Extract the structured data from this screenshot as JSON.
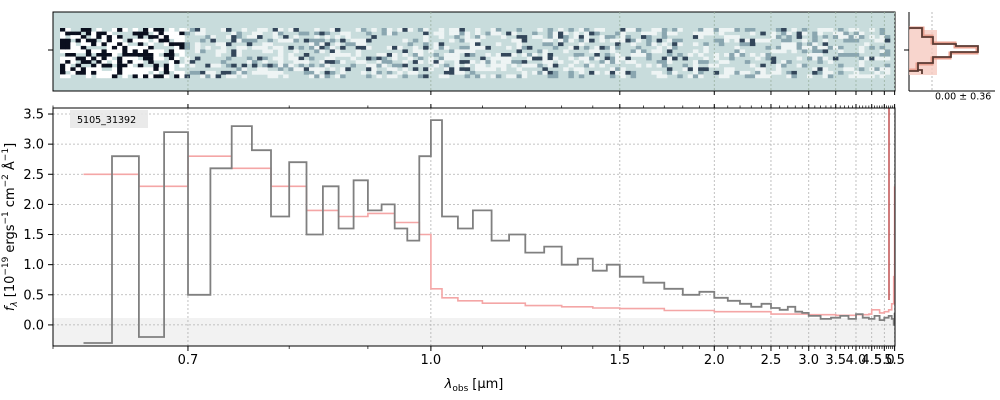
{
  "chart_data": [
    {
      "type": "heatmap",
      "panel": "2d-spectrum",
      "description_shown": "2D spectrum image (teal background, dark/white pixel structure along central trace)"
    },
    {
      "type": "line",
      "panel": "main-spectrum",
      "source_id": "5105_31392",
      "xlabel_main": "λ",
      "xlabel_sub": "obs",
      "xlabel_unit": "[μm]",
      "ylabel_text": "f",
      "ylabel_sub": "λ",
      "ylabel_rest": "[10",
      "ylabel_exp1": "−19",
      "ylabel_units": "ergs",
      "ylabel_exp2": "−1",
      "ylabel_cm": "cm",
      "ylabel_exp3": "−2",
      "ylabel_A": "Å",
      "ylabel_exp4": "−1",
      "ylabel_close": "]",
      "x_scale": "reciprocal (tick labels in μm)",
      "xlim": [
        0.6,
        5.52
      ],
      "ylim": [
        -0.35,
        3.6
      ],
      "xticks": [
        "0.7",
        "1.0",
        "1.5",
        "2.0",
        "2.5",
        "3.0",
        "3.5",
        "4.0",
        "4.5",
        "5.0",
        "5.5"
      ],
      "xtick_values": [
        0.7,
        1.0,
        1.5,
        2.0,
        2.5,
        3.0,
        3.5,
        4.0,
        4.5,
        5.0,
        5.5
      ],
      "yticks": [
        "0.0",
        "0.5",
        "1.0",
        "1.5",
        "2.0",
        "2.5",
        "3.0",
        "3.5"
      ],
      "ytick_values": [
        0.0,
        0.5,
        1.0,
        1.5,
        2.0,
        2.5,
        3.0,
        3.5
      ],
      "grid": true,
      "series": [
        {
          "role": "data",
          "color": "#808080",
          "x": [
            0.62,
            0.64,
            0.66,
            0.68,
            0.7,
            0.72,
            0.74,
            0.76,
            0.78,
            0.8,
            0.82,
            0.84,
            0.86,
            0.88,
            0.9,
            0.92,
            0.94,
            0.96,
            0.98,
            1.0,
            1.02,
            1.05,
            1.08,
            1.12,
            1.16,
            1.2,
            1.25,
            1.3,
            1.35,
            1.4,
            1.45,
            1.5,
            1.6,
            1.7,
            1.8,
            1.9,
            2.0,
            2.1,
            2.2,
            2.3,
            2.4,
            2.5,
            2.6,
            2.7,
            2.8,
            2.9,
            3.0,
            3.2,
            3.4,
            3.6,
            3.8,
            4.0,
            4.2,
            4.4,
            4.6,
            4.8,
            5.0,
            5.2,
            5.35,
            5.45,
            5.5
          ],
          "y": [
            -0.3,
            2.8,
            -0.2,
            3.2,
            0.5,
            2.6,
            3.3,
            2.9,
            1.8,
            2.7,
            1.5,
            2.3,
            1.6,
            2.4,
            1.9,
            2.0,
            1.6,
            1.4,
            2.8,
            3.4,
            1.8,
            1.6,
            1.9,
            1.4,
            1.5,
            1.2,
            1.3,
            1.0,
            1.1,
            0.9,
            1.0,
            0.8,
            0.7,
            0.6,
            0.5,
            0.55,
            0.45,
            0.4,
            0.35,
            0.3,
            0.35,
            0.28,
            0.25,
            0.3,
            0.22,
            0.2,
            0.15,
            0.1,
            0.12,
            0.15,
            0.1,
            0.18,
            0.12,
            0.1,
            0.15,
            0.08,
            0.12,
            0.15,
            0.1,
            0.0,
            0.2
          ]
        },
        {
          "role": "model",
          "color": "#f4a6a6",
          "x": [
            0.62,
            0.66,
            0.7,
            0.74,
            0.78,
            0.82,
            0.86,
            0.9,
            0.94,
            0.98,
            1.0,
            1.02,
            1.05,
            1.1,
            1.2,
            1.3,
            1.4,
            1.5,
            1.7,
            2.0,
            2.5,
            3.0,
            3.5,
            4.0,
            4.4,
            4.5,
            4.8,
            5.0,
            5.2,
            5.35,
            5.45,
            5.5
          ],
          "y": [
            2.5,
            2.3,
            2.8,
            2.6,
            2.3,
            1.9,
            1.8,
            1.85,
            1.7,
            1.5,
            0.6,
            0.45,
            0.4,
            0.36,
            0.32,
            0.3,
            0.28,
            0.27,
            0.24,
            0.22,
            0.18,
            0.17,
            0.16,
            0.17,
            0.18,
            0.25,
            0.2,
            0.22,
            0.25,
            0.35,
            0.8,
            2.3
          ]
        }
      ]
    },
    {
      "type": "line",
      "panel": "histogram",
      "annotation": "0.00 ± 0.36"
    }
  ]
}
